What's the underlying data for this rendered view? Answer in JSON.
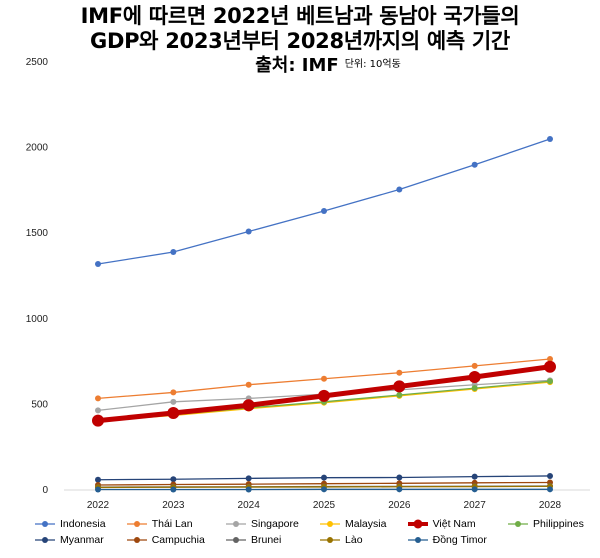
{
  "title": {
    "line1": "IMF에 따르면 2022년 베트남과 동남아 국가들의",
    "line2": "GDP와 2023년부터 2028년까지의 예측 기간",
    "source": "출처: IMF",
    "unit": "단위: 10억동"
  },
  "chart_data": {
    "type": "line",
    "x": [
      "2022",
      "2023",
      "2024",
      "2025",
      "2026",
      "2027",
      "2028"
    ],
    "ylim": [
      0,
      2500
    ],
    "yticks": [
      0,
      500,
      1000,
      1500,
      2000,
      2500
    ],
    "grid": false,
    "legend": "bottom",
    "series": [
      {
        "name": "Indonesia",
        "color": "#4472C4",
        "values": [
          1320,
          1390,
          1510,
          1630,
          1755,
          1900,
          2050
        ]
      },
      {
        "name": "Thái Lan",
        "color": "#ED7D31",
        "values": [
          535,
          570,
          615,
          650,
          685,
          725,
          765
        ]
      },
      {
        "name": "Singapore",
        "color": "#A5A5A5",
        "values": [
          465,
          515,
          535,
          560,
          585,
          615,
          640
        ]
      },
      {
        "name": "Malaysia",
        "color": "#FFC000",
        "values": [
          405,
          435,
          475,
          510,
          550,
          590,
          630
        ]
      },
      {
        "name": "Việt Nam",
        "color": "#C00000",
        "values": [
          405,
          450,
          495,
          550,
          605,
          660,
          720
        ],
        "bold": true
      },
      {
        "name": "Philippines",
        "color": "#70AD47",
        "values": [
          405,
          440,
          480,
          515,
          555,
          595,
          635
        ]
      },
      {
        "name": "Myanmar",
        "color": "#264478",
        "values": [
          60,
          63,
          68,
          72,
          73,
          78,
          82
        ]
      },
      {
        "name": "Campuchia",
        "color": "#9E480E",
        "values": [
          29,
          32,
          34,
          37,
          39,
          42,
          44
        ]
      },
      {
        "name": "Brunei",
        "color": "#636363",
        "values": [
          17,
          18,
          19,
          20,
          21,
          22,
          23
        ]
      },
      {
        "name": "Lào",
        "color": "#997300",
        "values": [
          15,
          16,
          17,
          18,
          19,
          20,
          21
        ]
      },
      {
        "name": "Đồng Timor",
        "color": "#255E91",
        "values": [
          3,
          3,
          3,
          4,
          4,
          4,
          4
        ]
      }
    ]
  }
}
